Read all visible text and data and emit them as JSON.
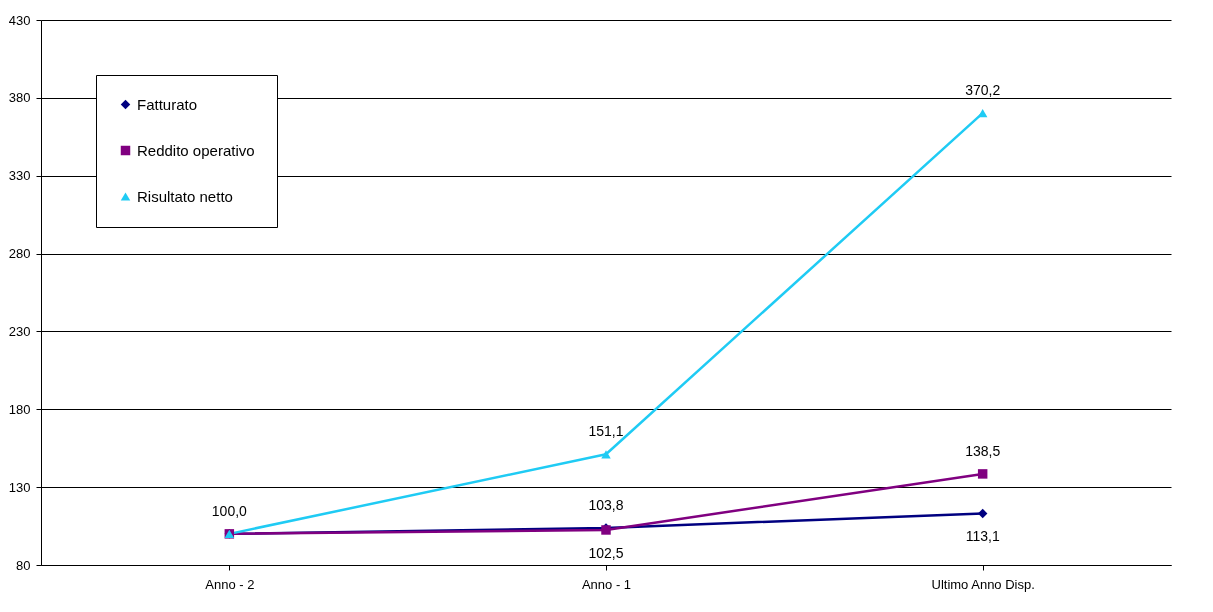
{
  "chart_data": {
    "type": "line",
    "categories": [
      "Anno - 2",
      "Anno - 1",
      "Ultimo Anno Disp."
    ],
    "series": [
      {
        "name": "Fatturato",
        "color": "#000080",
        "marker": "diamond",
        "values": [
          100.0,
          103.8,
          113.1
        ],
        "value_labels": [
          null,
          "103,8",
          "113,1"
        ]
      },
      {
        "name": "Reddito operativo",
        "color": "#800080",
        "marker": "square",
        "values": [
          100.0,
          102.5,
          138.5
        ],
        "value_labels": [
          null,
          "102,5",
          "138,5"
        ]
      },
      {
        "name": "Risultato netto",
        "color": "#1fcbf4",
        "marker": "triangle",
        "values": [
          100.0,
          151.1,
          370.2
        ],
        "value_labels": [
          "100,0",
          "151,1",
          "370,2"
        ]
      }
    ],
    "ylim": [
      80,
      430
    ],
    "yticks": [
      80,
      130,
      180,
      230,
      280,
      330,
      380,
      430
    ],
    "grid": "y",
    "legend": "top left"
  }
}
